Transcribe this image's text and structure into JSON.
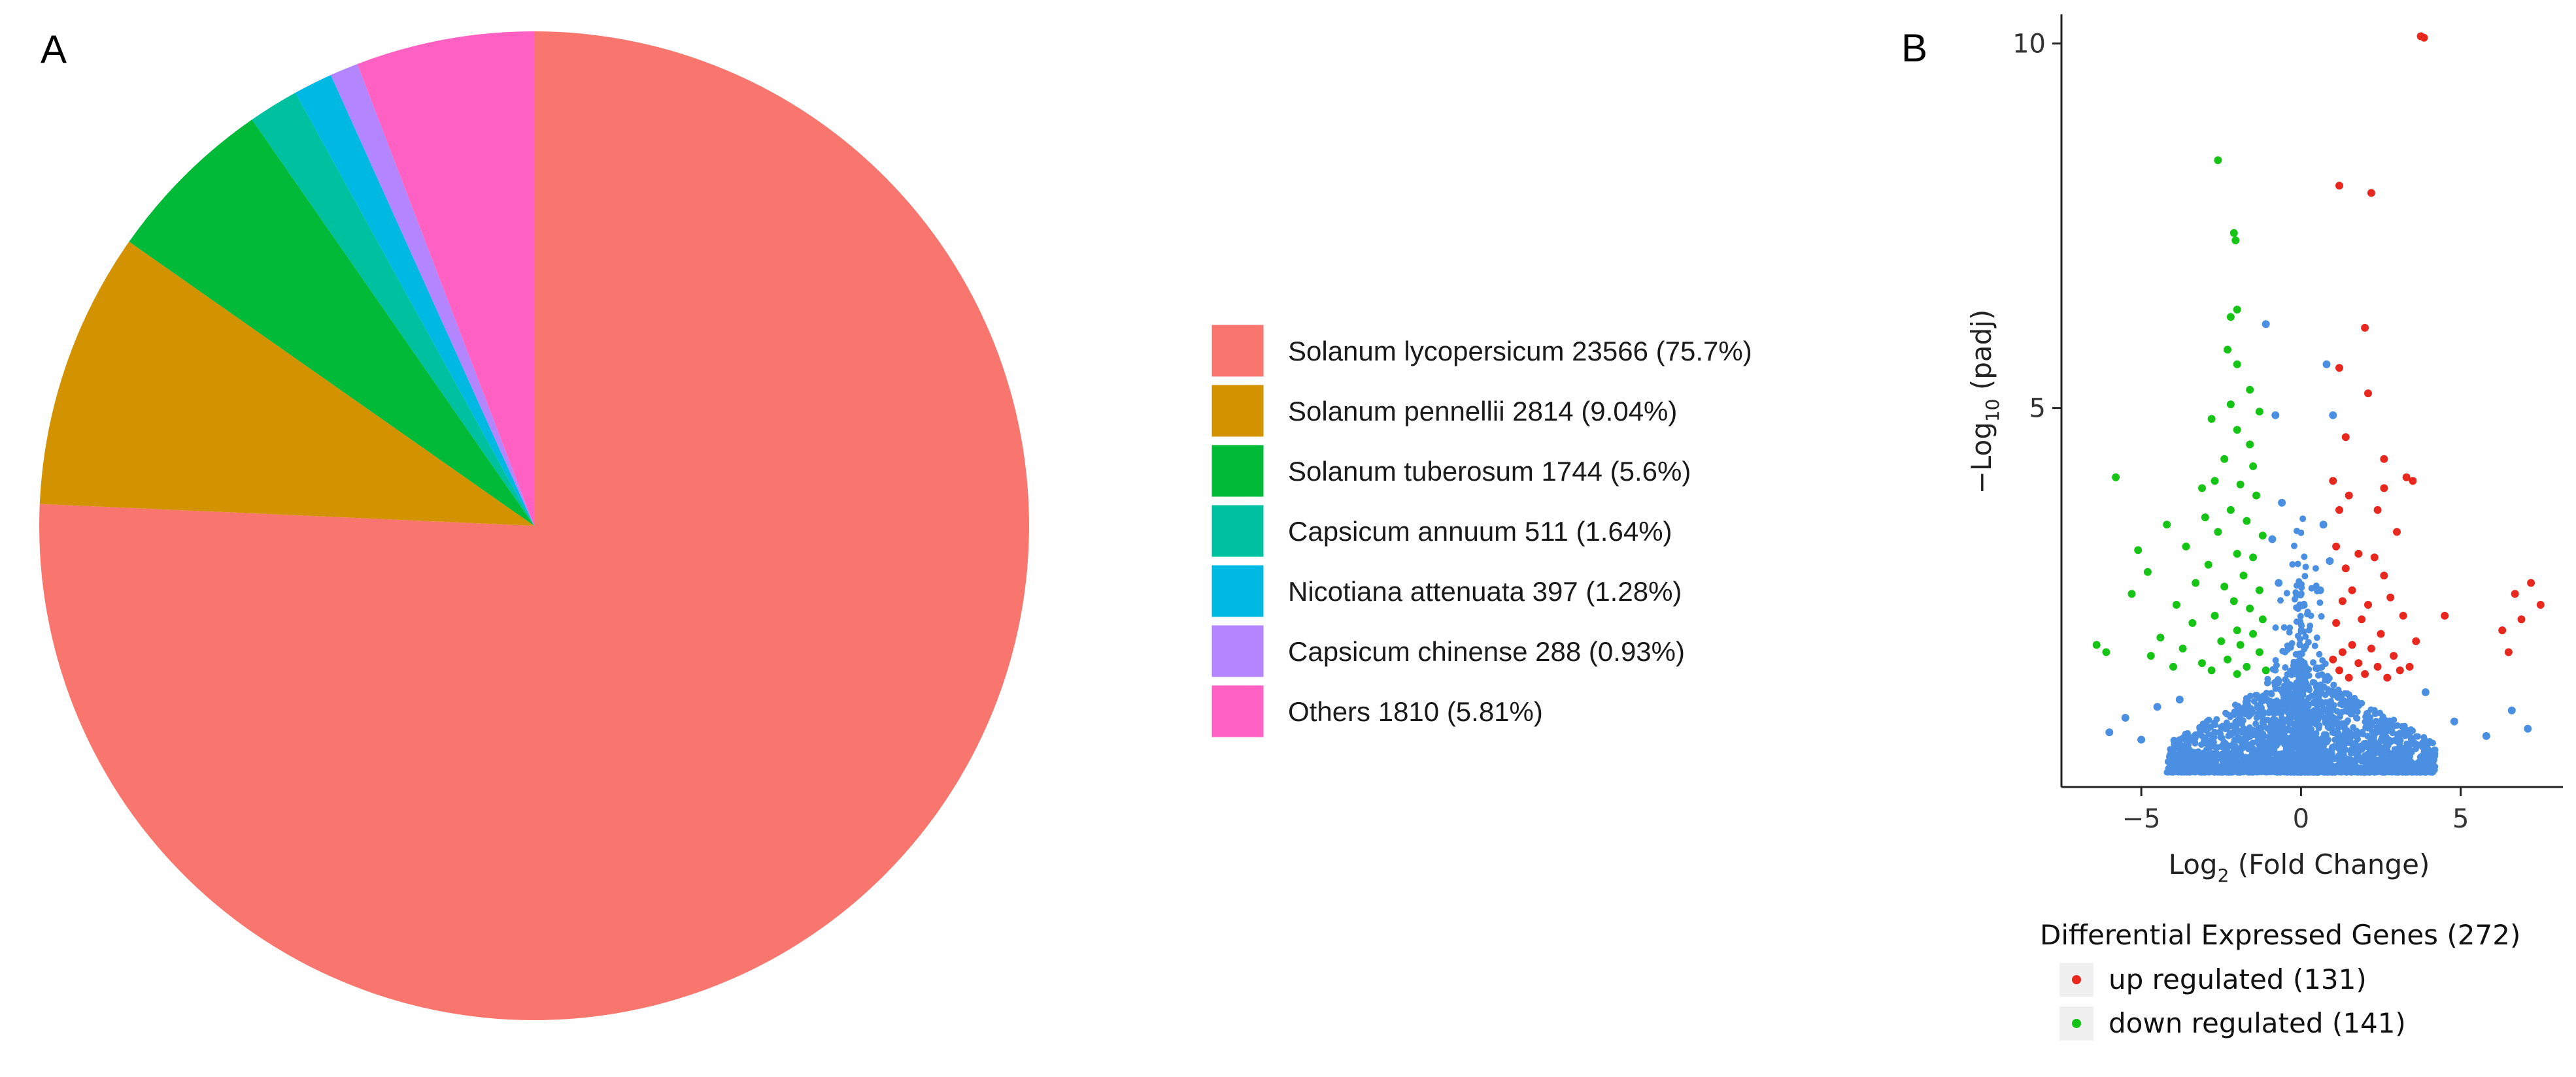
{
  "panel_a_label": "A",
  "panel_b_label": "B",
  "colors": {
    "up": "#e8281e",
    "down": "#16c416",
    "ns": "#4a8fe2",
    "legend_key_bg": "#f0f0f0"
  },
  "chart_data": [
    {
      "type": "pie",
      "title": "",
      "start_angle": "12 o'clock, clockwise",
      "slices": [
        {
          "species": "Solanum lycopersicum",
          "count": 23566,
          "percent": 75.7,
          "label": "Solanum lycopersicum 23566 (75.7%)",
          "color": "#f8766d"
        },
        {
          "species": "Solanum pennellii",
          "count": 2814,
          "percent": 9.04,
          "label": "Solanum pennellii 2814 (9.04%)",
          "color": "#d39200"
        },
        {
          "species": "Solanum tuberosum",
          "count": 1744,
          "percent": 5.6,
          "label": "Solanum tuberosum 1744 (5.6%)",
          "color": "#00ba38"
        },
        {
          "species": "Capsicum annuum",
          "count": 511,
          "percent": 1.64,
          "label": "Capsicum annuum 511 (1.64%)",
          "color": "#00c19f"
        },
        {
          "species": "Nicotiana attenuata",
          "count": 397,
          "percent": 1.28,
          "label": "Nicotiana attenuata 397 (1.28%)",
          "color": "#00b9e3"
        },
        {
          "species": "Capsicum chinense",
          "count": 288,
          "percent": 0.93,
          "label": "Capsicum chinense 288 (0.93%)",
          "color": "#b385ff"
        },
        {
          "species": "Others",
          "count": 1810,
          "percent": 5.81,
          "label": "Others 1810 (5.81%)",
          "color": "#ff61c3"
        }
      ],
      "legend_position": "right"
    },
    {
      "type": "scatter",
      "subtype": "volcano",
      "title": "",
      "xlabel_main": "Log",
      "xlabel_sub": "2",
      "xlabel_rest": " (Fold Change)",
      "ylabel_main": "−Log",
      "ylabel_sub": "10",
      "ylabel_rest": " (padj)",
      "xlim": [
        -7.5,
        8.2
      ],
      "ylim": [
        -0.2,
        10.4
      ],
      "x_ticks": [
        -5,
        0,
        5
      ],
      "x_tick_labels": [
        "−5",
        "0",
        "5"
      ],
      "y_ticks": [
        5,
        10
      ],
      "y_tick_labels": [
        "5",
        "10"
      ],
      "grid": false,
      "legend": {
        "title": "Differential Expressed Genes (272)",
        "items": [
          {
            "label": "up regulated (131)",
            "key": "up"
          },
          {
            "label": "down regulated (141)",
            "key": "down"
          }
        ],
        "position": "bottom"
      },
      "series": [
        {
          "key": "up",
          "name": "up regulated (131)",
          "points": [
            [
              3.75,
              10.1
            ],
            [
              3.85,
              10.08
            ],
            [
              1.2,
              8.05
            ],
            [
              2.2,
              7.95
            ],
            [
              2.0,
              6.1
            ],
            [
              1.2,
              5.55
            ],
            [
              2.1,
              5.2
            ],
            [
              1.4,
              4.6
            ],
            [
              2.6,
              4.3
            ],
            [
              1.0,
              4.0
            ],
            [
              3.5,
              4.0
            ],
            [
              3.3,
              4.05
            ],
            [
              2.6,
              3.9
            ],
            [
              1.5,
              3.8
            ],
            [
              2.4,
              3.6
            ],
            [
              3.0,
              3.3
            ],
            [
              1.2,
              3.6
            ],
            [
              1.1,
              3.1
            ],
            [
              1.8,
              3.0
            ],
            [
              2.3,
              2.95
            ],
            [
              2.6,
              2.7
            ],
            [
              1.4,
              2.8
            ],
            [
              1.6,
              2.5
            ],
            [
              2.8,
              2.4
            ],
            [
              1.3,
              2.35
            ],
            [
              2.1,
              2.3
            ],
            [
              3.2,
              2.15
            ],
            [
              1.9,
              2.1
            ],
            [
              1.1,
              2.05
            ],
            [
              2.5,
              1.9
            ],
            [
              3.6,
              1.8
            ],
            [
              1.6,
              1.75
            ],
            [
              2.2,
              1.7
            ],
            [
              1.3,
              1.65
            ],
            [
              2.9,
              1.6
            ],
            [
              7.2,
              2.6
            ],
            [
              7.5,
              2.3
            ],
            [
              6.7,
              2.45
            ],
            [
              6.9,
              2.1
            ],
            [
              6.3,
              1.95
            ],
            [
              6.5,
              1.65
            ],
            [
              4.5,
              2.15
            ],
            [
              1.0,
              1.55
            ],
            [
              1.8,
              1.5
            ],
            [
              2.4,
              1.45
            ],
            [
              3.1,
              1.4
            ],
            [
              1.2,
              1.4
            ],
            [
              2.0,
              1.35
            ],
            [
              2.7,
              1.3
            ],
            [
              1.5,
              1.3
            ],
            [
              3.4,
              1.45
            ]
          ]
        },
        {
          "key": "down",
          "name": "down regulated (141)",
          "points": [
            [
              -2.6,
              8.4
            ],
            [
              -2.1,
              7.4
            ],
            [
              -2.05,
              7.3
            ],
            [
              -2.0,
              6.35
            ],
            [
              -2.2,
              6.25
            ],
            [
              -2.3,
              5.8
            ],
            [
              -2.0,
              5.6
            ],
            [
              -1.6,
              5.25
            ],
            [
              -2.2,
              5.05
            ],
            [
              -2.8,
              4.85
            ],
            [
              -1.3,
              4.95
            ],
            [
              -2.0,
              4.7
            ],
            [
              -1.6,
              4.5
            ],
            [
              -2.4,
              4.3
            ],
            [
              -1.5,
              4.2
            ],
            [
              -5.8,
              4.05
            ],
            [
              -2.7,
              4.0
            ],
            [
              -1.9,
              3.95
            ],
            [
              -3.1,
              3.9
            ],
            [
              -1.4,
              3.8
            ],
            [
              -2.2,
              3.6
            ],
            [
              -3.0,
              3.5
            ],
            [
              -1.7,
              3.45
            ],
            [
              -4.2,
              3.4
            ],
            [
              -2.6,
              3.3
            ],
            [
              -1.2,
              3.25
            ],
            [
              -3.6,
              3.1
            ],
            [
              -5.1,
              3.05
            ],
            [
              -2.0,
              3.0
            ],
            [
              -1.5,
              2.95
            ],
            [
              -2.9,
              2.85
            ],
            [
              -4.8,
              2.75
            ],
            [
              -1.8,
              2.7
            ],
            [
              -3.3,
              2.6
            ],
            [
              -2.4,
              2.55
            ],
            [
              -1.3,
              2.5
            ],
            [
              -5.3,
              2.45
            ],
            [
              -2.1,
              2.35
            ],
            [
              -3.9,
              2.3
            ],
            [
              -1.6,
              2.25
            ],
            [
              -2.7,
              2.15
            ],
            [
              -1.2,
              2.1
            ],
            [
              -3.4,
              2.05
            ],
            [
              -2.0,
              1.95
            ],
            [
              -1.5,
              1.9
            ],
            [
              -4.4,
              1.85
            ],
            [
              -2.5,
              1.8
            ],
            [
              -1.9,
              1.75
            ],
            [
              -6.4,
              1.75
            ],
            [
              -6.1,
              1.65
            ],
            [
              -3.7,
              1.7
            ],
            [
              -1.3,
              1.65
            ],
            [
              -4.7,
              1.6
            ],
            [
              -2.3,
              1.55
            ],
            [
              -3.1,
              1.5
            ],
            [
              -1.7,
              1.45
            ],
            [
              -2.8,
              1.4
            ],
            [
              -1.1,
              1.4
            ],
            [
              -4.0,
              1.45
            ],
            [
              -2.0,
              1.35
            ]
          ]
        },
        {
          "key": "ns",
          "name": "",
          "points": [
            [
              -1.1,
              6.15
            ],
            [
              -0.8,
              4.9
            ],
            [
              -0.6,
              3.7
            ],
            [
              0.8,
              5.6
            ],
            [
              1.0,
              4.9
            ],
            [
              -0.9,
              3.2
            ],
            [
              0.7,
              3.4
            ],
            [
              0.9,
              2.9
            ],
            [
              -0.7,
              2.6
            ],
            [
              0.6,
              2.5
            ],
            [
              -6.0,
              0.55
            ],
            [
              -5.5,
              0.75
            ],
            [
              -5.0,
              0.45
            ],
            [
              6.6,
              0.85
            ],
            [
              7.1,
              0.6
            ],
            [
              5.8,
              0.5
            ],
            [
              4.8,
              0.7
            ],
            [
              -4.5,
              0.9
            ],
            [
              3.9,
              1.1
            ],
            [
              -3.8,
              1.0
            ]
          ],
          "cloud": "dense cluster of non-significant genes around x from -4 to 4, y from 0 to 1.4"
        }
      ]
    }
  ]
}
